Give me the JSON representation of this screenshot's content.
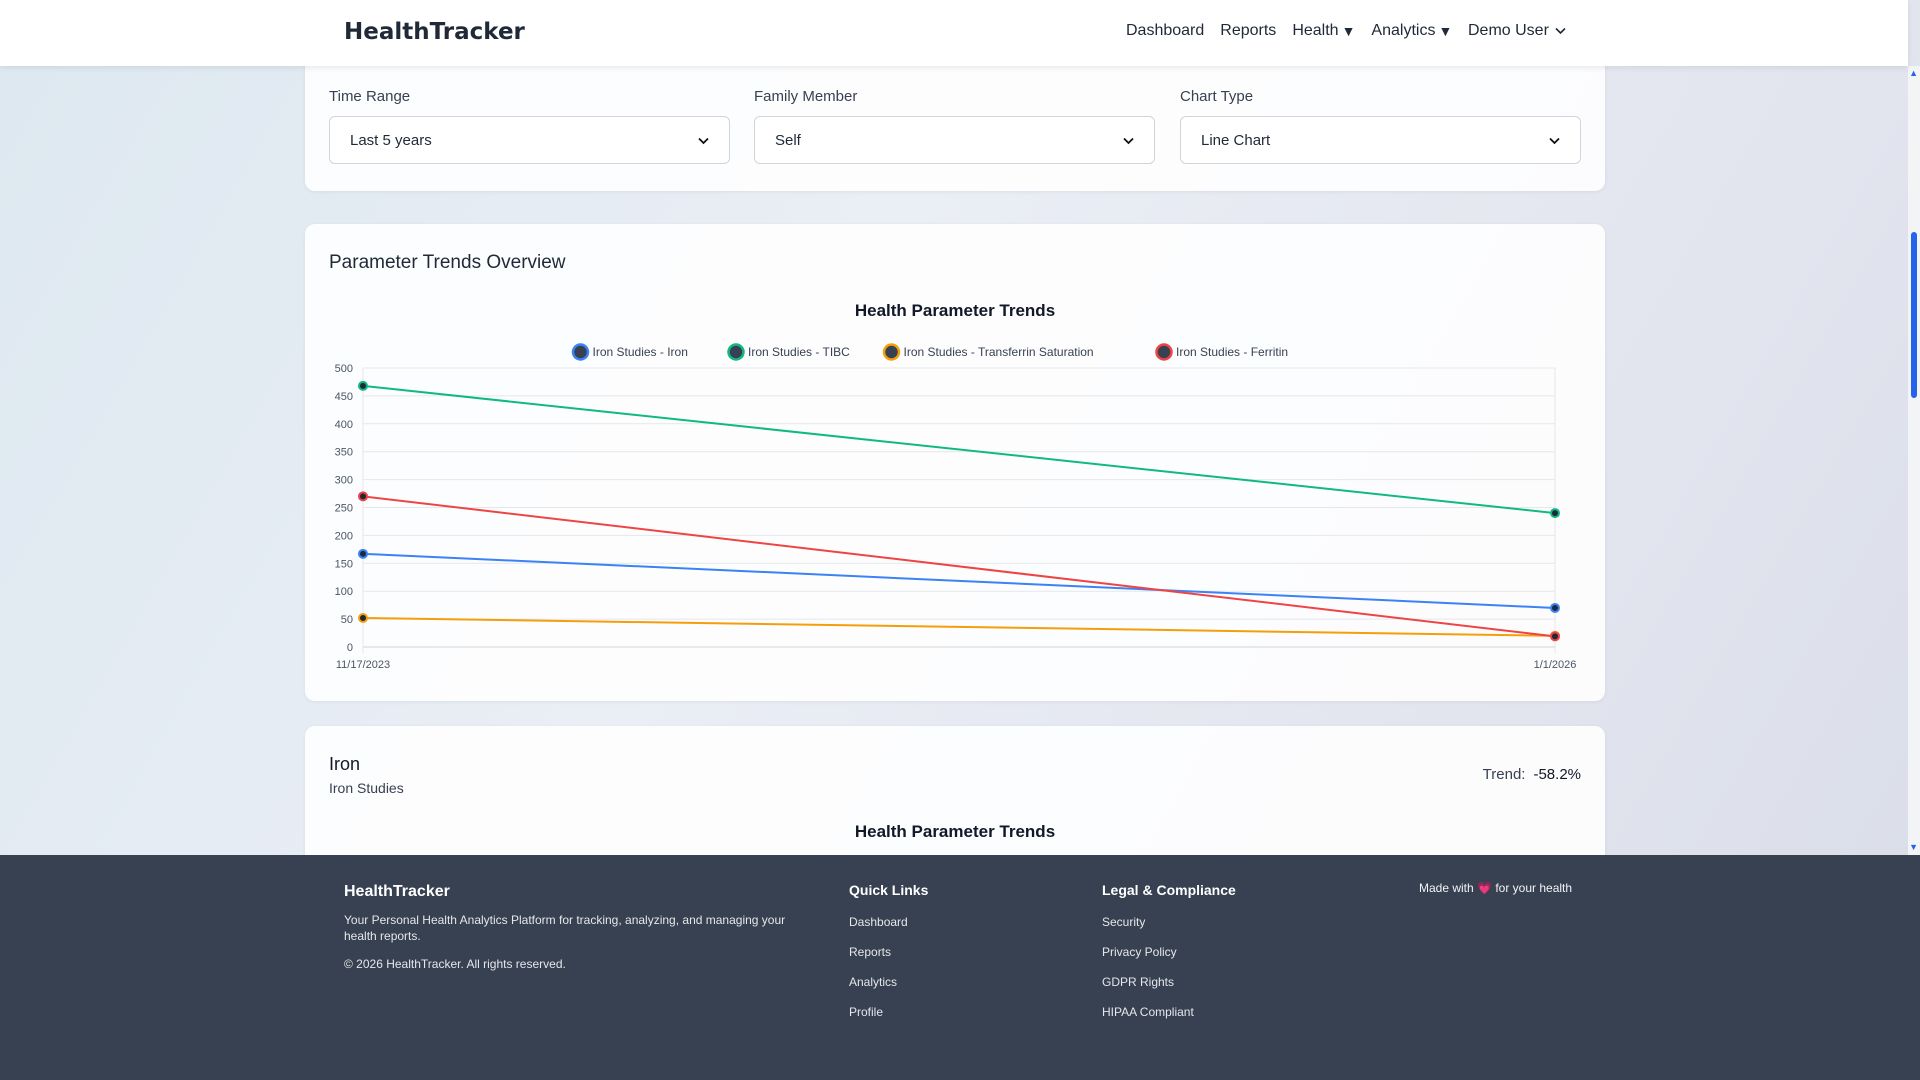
{
  "navbar": {
    "brand": "HealthTracker",
    "links": [
      "Dashboard",
      "Reports"
    ],
    "dropdowns": [
      {
        "label": "Health",
        "caret": "▼"
      },
      {
        "label": "Analytics",
        "caret": "▼"
      }
    ],
    "user": "Demo User"
  },
  "filters": [
    {
      "label": "Time Range",
      "value": "Last 5 years"
    },
    {
      "label": "Family Member",
      "value": "Self"
    },
    {
      "label": "Chart Type",
      "value": "Line Chart"
    }
  ],
  "overview": {
    "title": "Parameter Trends Overview"
  },
  "chart_data": {
    "type": "line",
    "title": "Health Parameter Trends",
    "x": [
      "11/17/2023",
      "1/1/2026"
    ],
    "ylim": [
      0,
      500
    ],
    "yticks": [
      0,
      50,
      100,
      150,
      200,
      250,
      300,
      350,
      400,
      450,
      500
    ],
    "grid": true,
    "legend_position": "top-center",
    "series": [
      {
        "name": "Iron Studies - Iron",
        "values": [
          167,
          70
        ],
        "color": "#3b82f6"
      },
      {
        "name": "Iron Studies - TIBC",
        "values": [
          468,
          240
        ],
        "color": "#10b981"
      },
      {
        "name": "Iron Studies - Transferrin Saturation",
        "values": [
          52,
          20
        ],
        "color": "#f59e0b"
      },
      {
        "name": "Iron Studies - Ferritin",
        "values": [
          270,
          19
        ],
        "color": "#ef4444"
      }
    ]
  },
  "iron_card": {
    "name": "Iron",
    "group": "Iron Studies",
    "trend_label": "Trend:",
    "trend_value": "-58.2%",
    "chart_title": "Health Parameter Trends"
  },
  "footer": {
    "brand": "HealthTracker",
    "description": "Your Personal Health Analytics Platform for tracking, analyzing, and managing your health reports.",
    "copyright": "© 2026 HealthTracker. All rights reserved.",
    "quick_links": {
      "title": "Quick Links",
      "items": [
        "Dashboard",
        "Reports",
        "Analytics",
        "Profile"
      ]
    },
    "legal": {
      "title": "Legal & Compliance",
      "items": [
        "Security",
        "Privacy Policy",
        "GDPR Rights",
        "HIPAA Compliant"
      ]
    },
    "made_with": {
      "before": "Made with",
      "heart": "💗",
      "after": "for your health"
    }
  }
}
